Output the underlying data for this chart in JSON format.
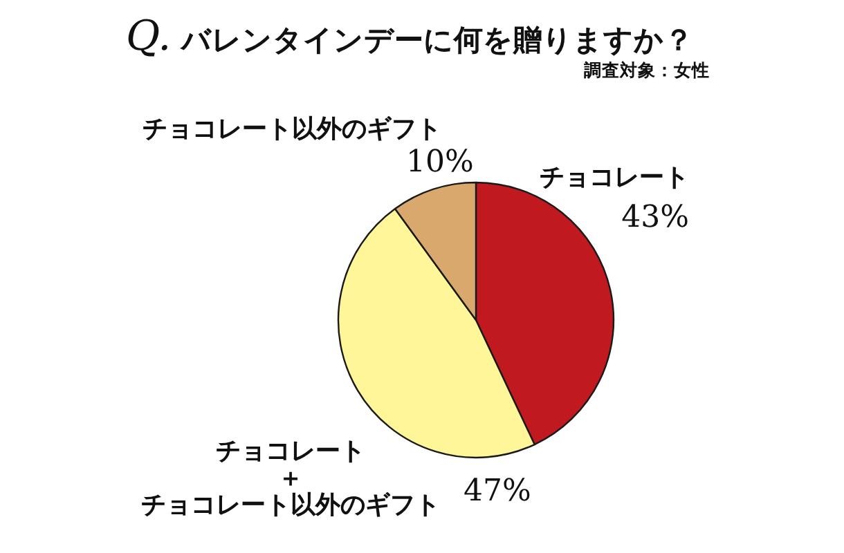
{
  "chart_data": {
    "type": "pie",
    "title": "Q. バレンタインデーに何を贈りますか？",
    "subtitle": "調査対象：女性",
    "categories": [
      "チョコレート",
      "チョコレート＋チョコレート以外のギフト",
      "チョコレート以外のギフト"
    ],
    "values": [
      43,
      47,
      10
    ],
    "colors": [
      "#c0191f",
      "#fff599",
      "#d9a86c"
    ],
    "value_labels": [
      "43%",
      "47%",
      "10%"
    ]
  }
}
